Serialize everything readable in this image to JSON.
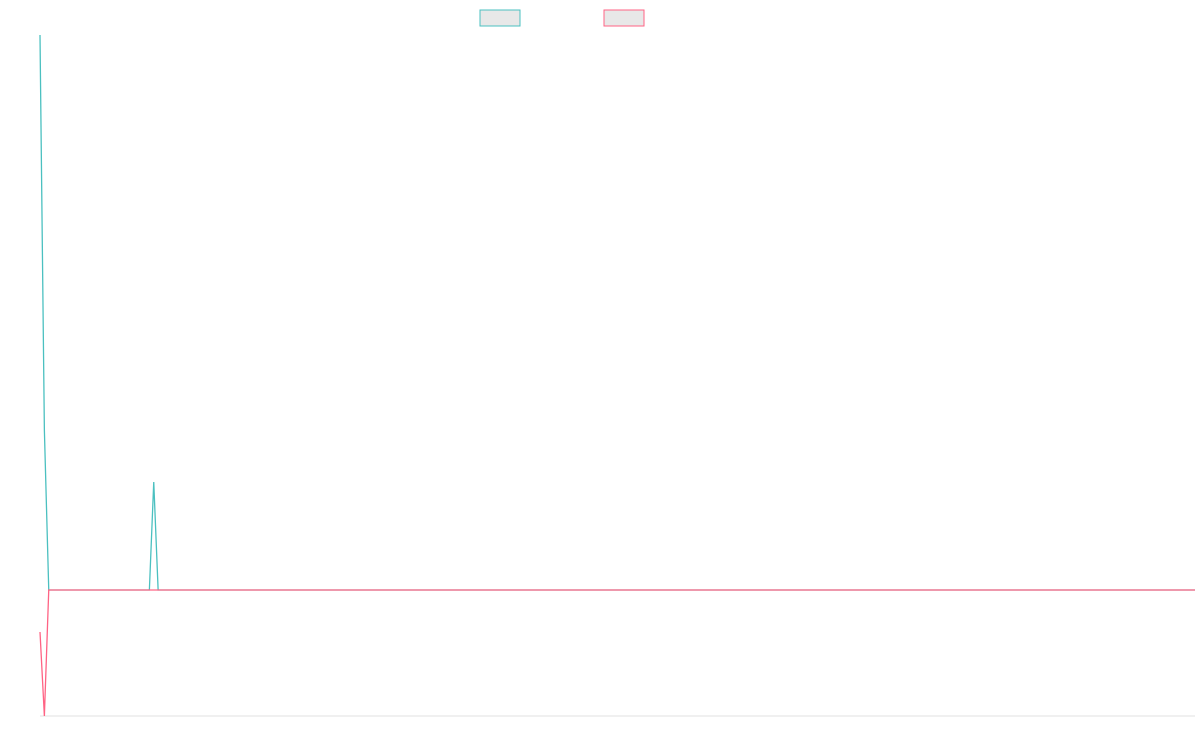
{
  "chart_data": {
    "type": "line",
    "ylim": [
      -126,
      555
    ],
    "series": [
      {
        "color": "#4bc0c0",
        "values": [
          555,
          160,
          0,
          0,
          0,
          0,
          0,
          0,
          0,
          0,
          0,
          0,
          0,
          0,
          0,
          0,
          0,
          0,
          0,
          0,
          0,
          0,
          0,
          0,
          0,
          0,
          108,
          0,
          0,
          0,
          0,
          0,
          0,
          0,
          0,
          0,
          0,
          0,
          0,
          0,
          0,
          0,
          0,
          0,
          0,
          0,
          0,
          0,
          0,
          0,
          0,
          0,
          0,
          0,
          0,
          0,
          0,
          0,
          0,
          0,
          0,
          0,
          0,
          0,
          0,
          0,
          0,
          0,
          0,
          0,
          0,
          0,
          0,
          0,
          0,
          0,
          0,
          0,
          0,
          0,
          0,
          0,
          0,
          0,
          0,
          0,
          0,
          0,
          0,
          0,
          0,
          0,
          0,
          0,
          0,
          0,
          0,
          0,
          0,
          0,
          0,
          0,
          0,
          0,
          0,
          0,
          0,
          0,
          0,
          0,
          0,
          0,
          0,
          0,
          0,
          0,
          0,
          0,
          0,
          0,
          0,
          0,
          0,
          0,
          0,
          0,
          0,
          0,
          0,
          0,
          0,
          0,
          0,
          0,
          0,
          0,
          0,
          0,
          0,
          0,
          0,
          0,
          0,
          0,
          0,
          0,
          0,
          0,
          0,
          0,
          0,
          0,
          0,
          0,
          0,
          0,
          0,
          0,
          0,
          0,
          0,
          0,
          0,
          0,
          0,
          0,
          0,
          0,
          0,
          0,
          0,
          0,
          0,
          0,
          0,
          0,
          0,
          0,
          0,
          0,
          0,
          0,
          0,
          0,
          0,
          0,
          0,
          0,
          0,
          0,
          0,
          0,
          0,
          0,
          0,
          0,
          0,
          0,
          0,
          0,
          0,
          0,
          0,
          0,
          0,
          0,
          0,
          0,
          0,
          0,
          0,
          0,
          0,
          0,
          0,
          0,
          0,
          0,
          0,
          0,
          0,
          0,
          0,
          0,
          0,
          0,
          0,
          0,
          0,
          0,
          0,
          0,
          0,
          0,
          0,
          0,
          0,
          0,
          0,
          0,
          0,
          0,
          0,
          0,
          0,
          0,
          0,
          0,
          0,
          0,
          0,
          0,
          0,
          0,
          0,
          0,
          0,
          0,
          0,
          0,
          0,
          0,
          0,
          0,
          0
        ]
      },
      {
        "color": "#ff6384",
        "values": [
          -42,
          -126,
          0,
          0,
          0,
          0,
          0,
          0,
          0,
          0,
          0,
          0,
          0,
          0,
          0,
          0,
          0,
          0,
          0,
          0,
          0,
          0,
          0,
          0,
          0,
          0,
          0,
          0,
          0,
          0,
          0,
          0,
          0,
          0,
          0,
          0,
          0,
          0,
          0,
          0,
          0,
          0,
          0,
          0,
          0,
          0,
          0,
          0,
          0,
          0,
          0,
          0,
          0,
          0,
          0,
          0,
          0,
          0,
          0,
          0,
          0,
          0,
          0,
          0,
          0,
          0,
          0,
          0,
          0,
          0,
          0,
          0,
          0,
          0,
          0,
          0,
          0,
          0,
          0,
          0,
          0,
          0,
          0,
          0,
          0,
          0,
          0,
          0,
          0,
          0,
          0,
          0,
          0,
          0,
          0,
          0,
          0,
          0,
          0,
          0,
          0,
          0,
          0,
          0,
          0,
          0,
          0,
          0,
          0,
          0,
          0,
          0,
          0,
          0,
          0,
          0,
          0,
          0,
          0,
          0,
          0,
          0,
          0,
          0,
          0,
          0,
          0,
          0,
          0,
          0,
          0,
          0,
          0,
          0,
          0,
          0,
          0,
          0,
          0,
          0,
          0,
          0,
          0,
          0,
          0,
          0,
          0,
          0,
          0,
          0,
          0,
          0,
          0,
          0,
          0,
          0,
          0,
          0,
          0,
          0,
          0,
          0,
          0,
          0,
          0,
          0,
          0,
          0,
          0,
          0,
          0,
          0,
          0,
          0,
          0,
          0,
          0,
          0,
          0,
          0,
          0,
          0,
          0,
          0,
          0,
          0,
          0,
          0,
          0,
          0,
          0,
          0,
          0,
          0,
          0,
          0,
          0,
          0,
          0,
          0,
          0,
          0,
          0,
          0,
          0,
          0,
          0,
          0,
          0,
          0,
          0,
          0,
          0,
          0,
          0,
          0,
          0,
          0,
          0,
          0,
          0,
          0,
          0,
          0,
          0,
          0,
          0,
          0,
          0,
          0,
          0,
          0,
          0,
          0,
          0,
          0,
          0,
          0,
          0,
          0,
          0,
          0,
          0,
          0,
          0,
          0,
          0,
          0,
          0,
          0,
          0,
          0,
          0,
          0,
          0,
          0,
          0,
          0,
          0,
          0,
          0,
          0,
          0,
          0,
          0
        ]
      }
    ]
  }
}
